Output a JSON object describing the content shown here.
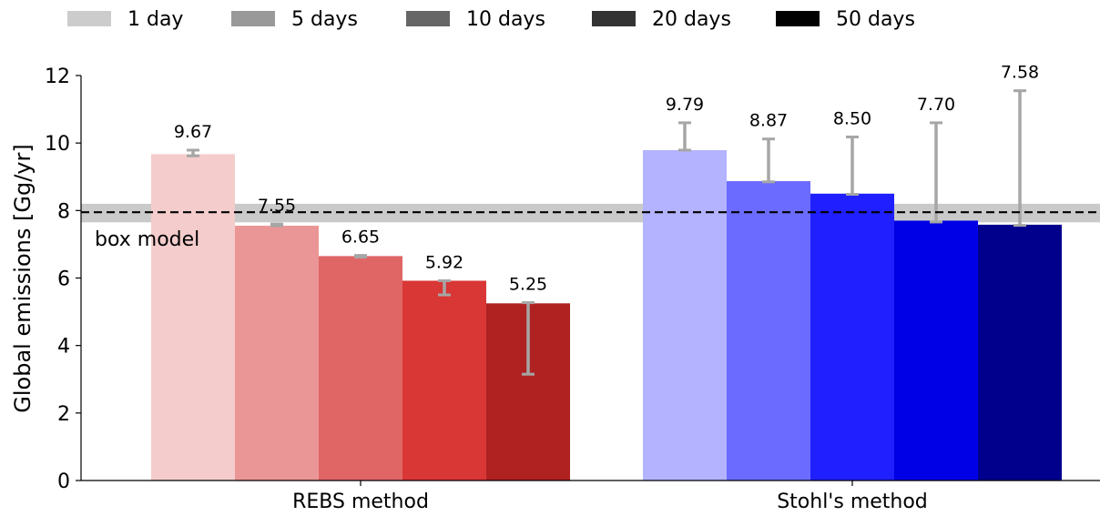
{
  "chart_data": {
    "type": "bar",
    "categories": [
      "REBS method",
      "Stohl's method"
    ],
    "ylabel": "Global emissions [Gg/yr]",
    "xlabel": "",
    "ylim": [
      0,
      12
    ],
    "yticks": [
      0,
      2,
      4,
      6,
      8,
      10,
      12
    ],
    "grid": false,
    "legend_position": "top",
    "legend": [
      "1 day",
      "5 days",
      "10 days",
      "20 days",
      "50 days"
    ],
    "legend_colors": [
      "#cccccc",
      "#999999",
      "#666666",
      "#333333",
      "#000000"
    ],
    "series": [
      {
        "name": "1 day",
        "values": [
          9.67,
          9.79
        ],
        "labels": [
          "9.67",
          "9.79"
        ],
        "err_low": [
          9.62,
          9.79
        ],
        "err_high": [
          9.79,
          10.6
        ],
        "colors": [
          "#f4cccc",
          "#b3b3ff"
        ]
      },
      {
        "name": "5 days",
        "values": [
          7.55,
          8.87
        ],
        "labels": [
          "7.55",
          "8.87"
        ],
        "err_low": [
          7.55,
          8.85
        ],
        "err_high": [
          7.6,
          10.12
        ],
        "colors": [
          "#eb9696",
          "#6b6bff"
        ]
      },
      {
        "name": "10 days",
        "values": [
          6.65,
          8.5
        ],
        "labels": [
          "6.65",
          "8.50"
        ],
        "err_low": [
          6.62,
          8.48
        ],
        "err_high": [
          6.67,
          10.18
        ],
        "colors": [
          "#e06666",
          "#1f1fff"
        ]
      },
      {
        "name": "20 days",
        "values": [
          5.92,
          7.7
        ],
        "labels": [
          "5.92",
          "7.70"
        ],
        "err_low": [
          5.5,
          7.66
        ],
        "err_high": [
          5.92,
          10.6
        ],
        "colors": [
          "#d93636",
          "#0000e6"
        ]
      },
      {
        "name": "50 days",
        "values": [
          5.25,
          7.58
        ],
        "labels": [
          "5.25",
          "7.58"
        ],
        "err_low": [
          3.15,
          7.56
        ],
        "err_high": [
          5.27,
          11.55
        ],
        "colors": [
          "#b02222",
          "#00008c"
        ]
      }
    ],
    "reference": {
      "label": "box model",
      "value": 7.95,
      "band": [
        7.65,
        8.2
      ]
    }
  }
}
